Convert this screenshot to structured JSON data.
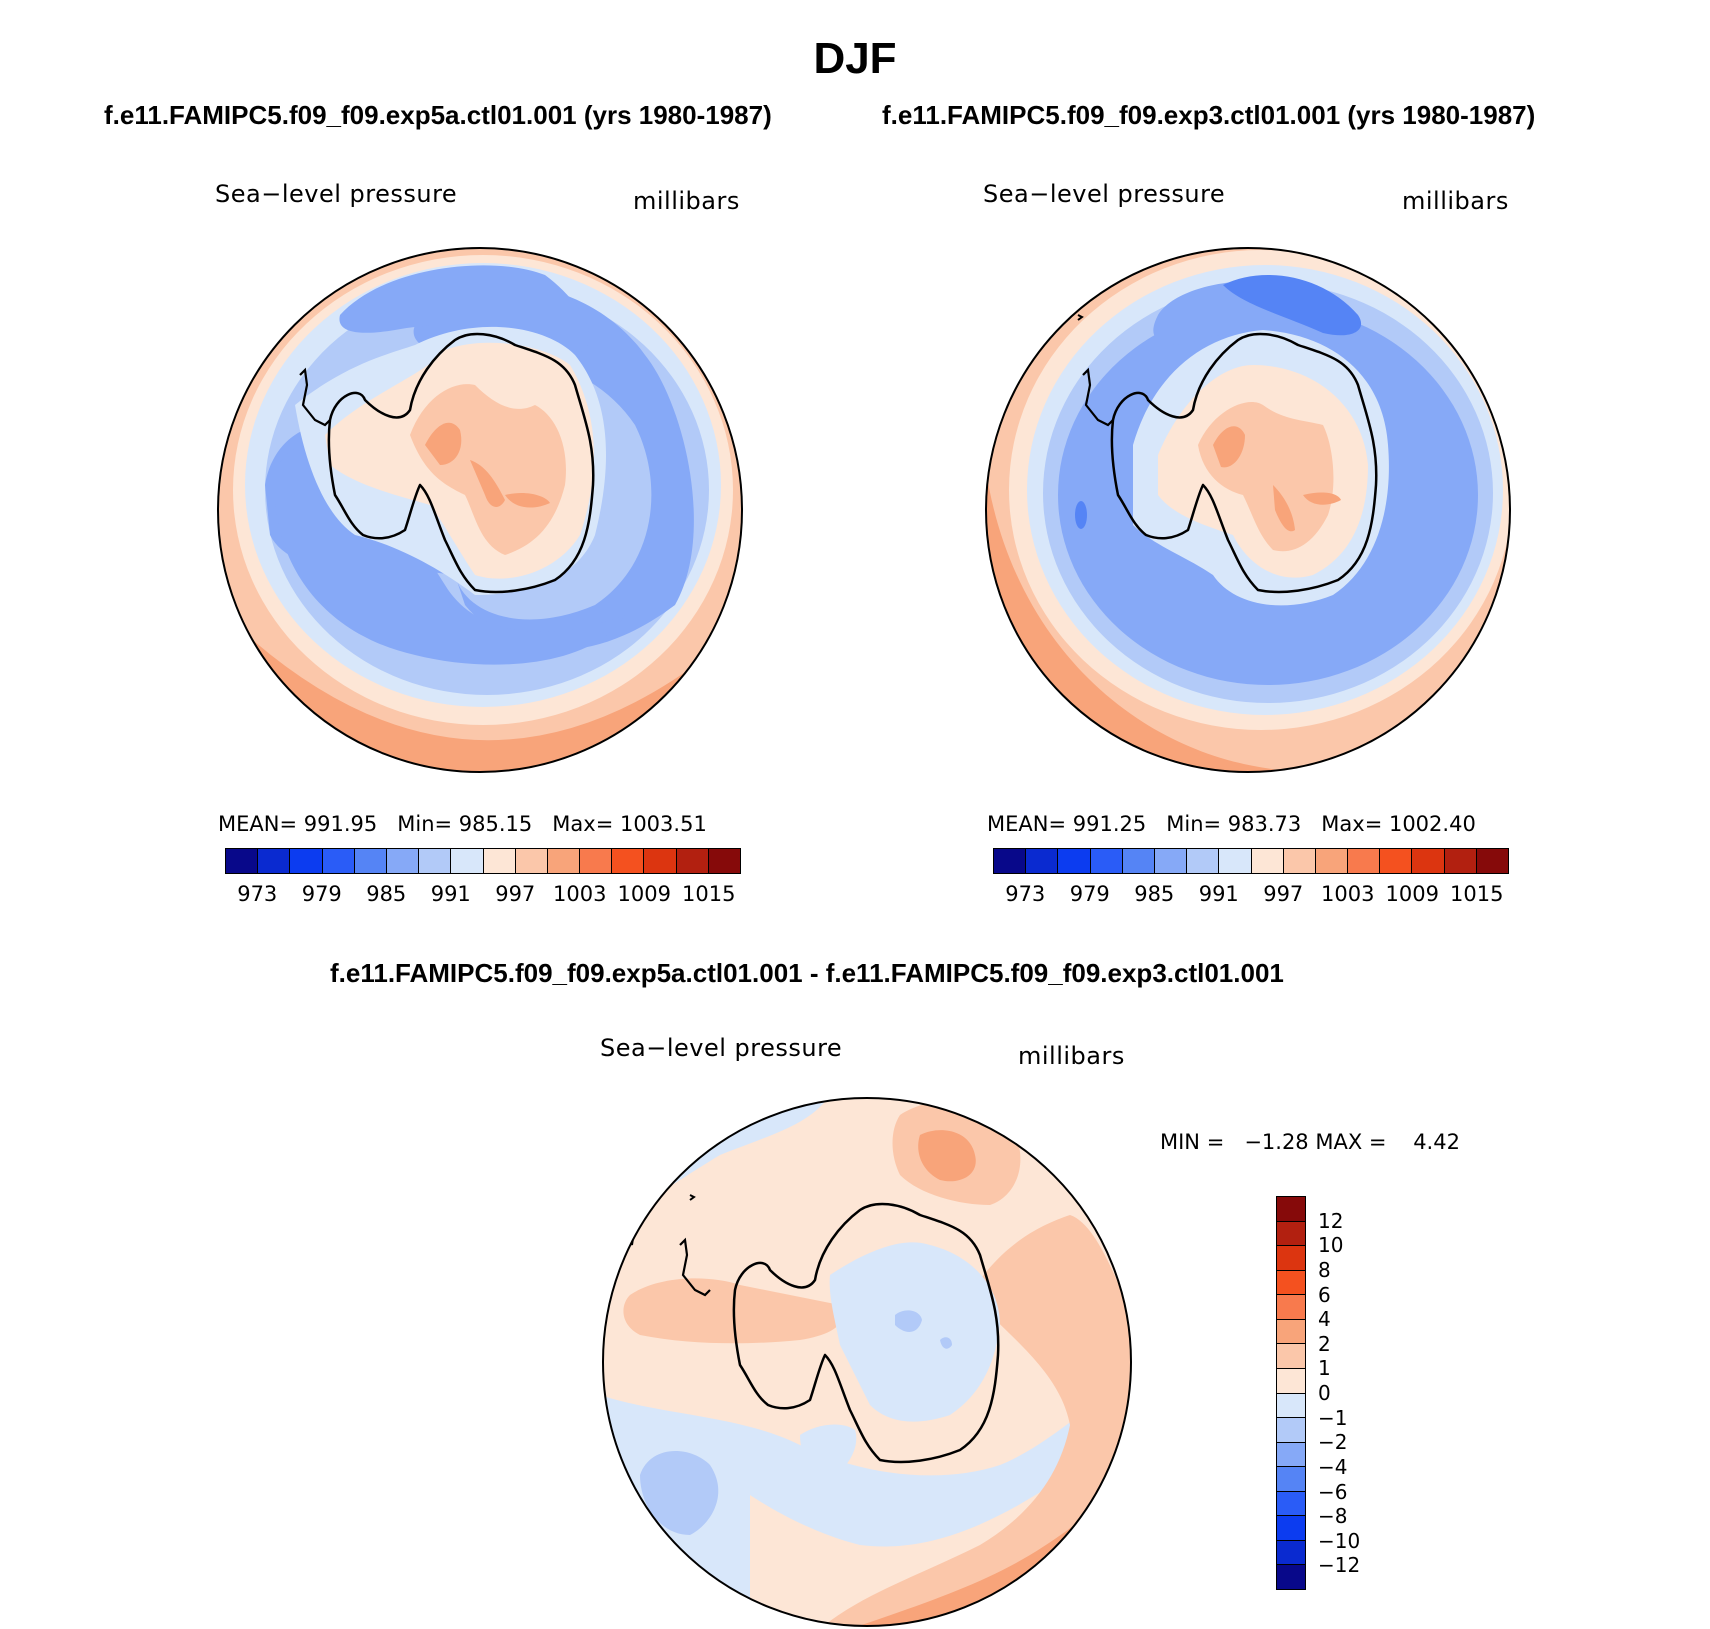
{
  "title": "DJF",
  "colors": {
    "abs_scale": [
      "#08088a",
      "#0a2ad0",
      "#0c3cf0",
      "#2a5cf7",
      "#5584f5",
      "#86a9f7",
      "#b2caf8",
      "#d8e7fa",
      "#fde6d6",
      "#fbc7aa",
      "#f8a47a",
      "#f87a4d",
      "#f4511f",
      "#dc3510",
      "#b22010",
      "#860a0a"
    ],
    "diff_scale": [
      "#860a0a",
      "#b22010",
      "#dc3510",
      "#f4511f",
      "#f87a4d",
      "#f8a47a",
      "#fbc7aa",
      "#fde6d6",
      "#d8e7fa",
      "#b2caf8",
      "#86a9f7",
      "#5584f5",
      "#2a5cf7",
      "#0c3cf0",
      "#0a2ad0",
      "#08088a"
    ]
  },
  "panel_left": {
    "case_title": "f.e11.FAMIPC5.f09_f09.exp5a.ctl01.001 (yrs 1980-1987)",
    "variable": "Sea−level pressure",
    "units": "millibars",
    "stats": "MEAN= 991.95   Min= 985.15   Max= 1003.51",
    "ticks": [
      "973",
      "979",
      "985",
      "991",
      "997",
      "1003",
      "1009",
      "1015"
    ]
  },
  "panel_right": {
    "case_title": "f.e11.FAMIPC5.f09_f09.exp3.ctl01.001 (yrs 1980-1987)",
    "variable": "Sea−level pressure",
    "units": "millibars",
    "stats": "MEAN= 991.25   Min= 983.73   Max= 1002.40",
    "ticks": [
      "973",
      "979",
      "985",
      "991",
      "997",
      "1003",
      "1009",
      "1015"
    ]
  },
  "panel_diff": {
    "case_title": "f.e11.FAMIPC5.f09_f09.exp5a.ctl01.001 - f.e11.FAMIPC5.f09_f09.exp3.ctl01.001",
    "variable": "Sea−level pressure",
    "units": "millibars",
    "stats": "MIN =   −1.28 MAX =    4.42",
    "ticks": [
      "12",
      "10",
      "8",
      "6",
      "4",
      "2",
      "1",
      "0",
      "−1",
      "−2",
      "−4",
      "−6",
      "−8",
      "−10",
      "−12"
    ]
  }
}
